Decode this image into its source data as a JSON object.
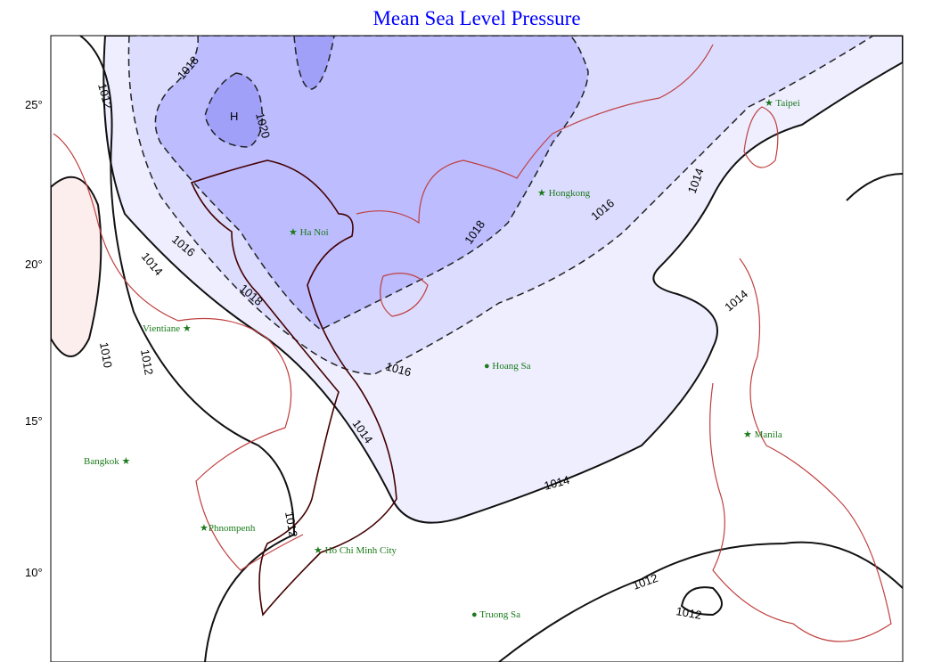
{
  "title": "Mean Sea Level Pressure",
  "lat_ticks": [
    "25°",
    "20°",
    "15°",
    "10°"
  ],
  "high_marker": "H",
  "contour_labels": [
    "1010",
    "1012",
    "1012",
    "1012",
    "1012",
    "1012",
    "1014",
    "1014",
    "1014",
    "1014",
    "1014",
    "1016",
    "1016",
    "1016",
    "1018",
    "1018",
    "1018",
    "1020"
  ],
  "cities": [
    "Taipei",
    "Hongkong",
    "Ha Noi",
    "Vientiane",
    "Hoang Sa",
    "Manila",
    "Bangkok",
    "Phnompenh",
    "Ho Chi Minh City",
    "Truong Sa"
  ],
  "colors": {
    "title": "#0000ff",
    "fill_1012": "#ffffff",
    "fill_1014": "#eeeeff",
    "fill_1016": "#dcdcff",
    "fill_1018": "#bcbcff",
    "fill_1020": "#a0a0f8",
    "low_fill": "#fdeeee",
    "coast": "#c04040",
    "city_label": "#1a7a1a"
  }
}
